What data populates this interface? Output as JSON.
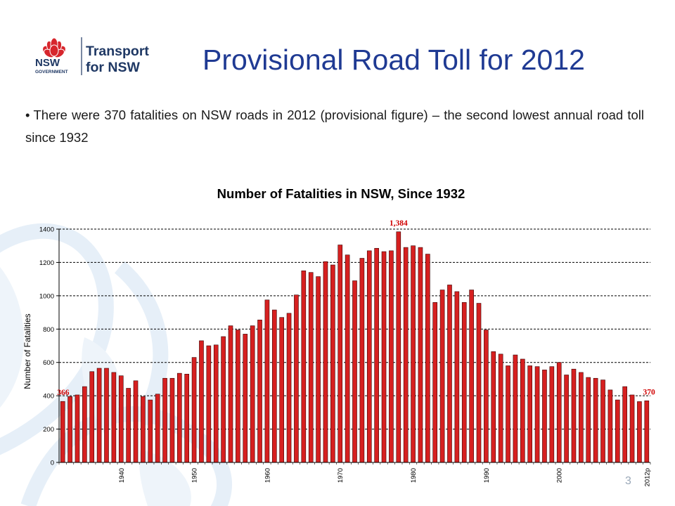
{
  "slide": {
    "title": "Provisional Road Toll for 2012",
    "bullet_text": "There were 370 fatalities on NSW roads in 2012 (provisional figure) – the second lowest annual road toll since 1932",
    "page_number": "3"
  },
  "logo": {
    "gov_name": "NSW",
    "gov_sub": "GOVERNMENT",
    "brand_line1": "Transport",
    "brand_line2": "for NSW"
  },
  "colors": {
    "bar": "#d62020",
    "title": "#1f3a93",
    "label": "#d00000",
    "brand_navy": "#1f3864",
    "waratah_red": "#d7262d"
  },
  "chart_data": {
    "type": "bar",
    "title": "Number of Fatalities in NSW, Since 1932",
    "ylabel": "Number of Fatalities",
    "xlabel": "",
    "ylim": [
      0,
      1400
    ],
    "yticks": [
      0,
      200,
      400,
      600,
      800,
      1000,
      1200,
      1400
    ],
    "grid": "horizontal dashed",
    "x_tick_labels": [
      {
        "year": 1940,
        "label": "1940"
      },
      {
        "year": 1950,
        "label": "1950"
      },
      {
        "year": 1960,
        "label": "1960"
      },
      {
        "year": 1970,
        "label": "1970"
      },
      {
        "year": 1980,
        "label": "1980"
      },
      {
        "year": 1990,
        "label": "1990"
      },
      {
        "year": 2000,
        "label": "2000"
      },
      {
        "year": 2012,
        "label": "2012p"
      }
    ],
    "annotations": [
      {
        "year": 1932,
        "label": "366"
      },
      {
        "year": 1978,
        "label": "1,384"
      },
      {
        "year": 2012,
        "label": "370"
      }
    ],
    "categories": [
      1932,
      1933,
      1934,
      1935,
      1936,
      1937,
      1938,
      1939,
      1940,
      1941,
      1942,
      1943,
      1944,
      1945,
      1946,
      1947,
      1948,
      1949,
      1950,
      1951,
      1952,
      1953,
      1954,
      1955,
      1956,
      1957,
      1958,
      1959,
      1960,
      1961,
      1962,
      1963,
      1964,
      1965,
      1966,
      1967,
      1968,
      1969,
      1970,
      1971,
      1972,
      1973,
      1974,
      1975,
      1976,
      1977,
      1978,
      1979,
      1980,
      1981,
      1982,
      1983,
      1984,
      1985,
      1986,
      1987,
      1988,
      1989,
      1990,
      1991,
      1992,
      1993,
      1994,
      1995,
      1996,
      1997,
      1998,
      1999,
      2000,
      2001,
      2002,
      2003,
      2004,
      2005,
      2006,
      2007,
      2008,
      2009,
      2010,
      2011,
      2012
    ],
    "values": [
      366,
      395,
      405,
      455,
      545,
      565,
      565,
      540,
      520,
      445,
      490,
      395,
      375,
      410,
      505,
      505,
      535,
      530,
      630,
      730,
      700,
      705,
      755,
      820,
      795,
      770,
      820,
      855,
      975,
      915,
      870,
      895,
      1005,
      1150,
      1140,
      1115,
      1205,
      1185,
      1305,
      1245,
      1090,
      1225,
      1270,
      1285,
      1265,
      1270,
      1384,
      1290,
      1300,
      1290,
      1250,
      960,
      1035,
      1065,
      1025,
      960,
      1035,
      955,
      795,
      665,
      650,
      580,
      645,
      620,
      580,
      575,
      555,
      575,
      600,
      525,
      560,
      540,
      510,
      505,
      495,
      435,
      375,
      455,
      405,
      365,
      370
    ]
  }
}
